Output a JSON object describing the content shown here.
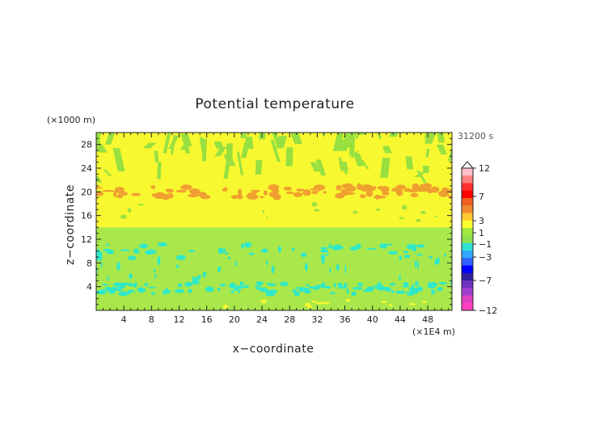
{
  "chart_data": {
    "type": "heatmap",
    "title": "Potential temperature",
    "xlabel": "x−coordinate",
    "ylabel": "z−coordinate",
    "x_unit": "(×1E4 m)",
    "y_unit": "(×1000 m)",
    "time_label": "31200 s",
    "xlim": [
      0,
      51.5
    ],
    "ylim": [
      0,
      30
    ],
    "x_ticks": [
      "4",
      "8",
      "12",
      "16",
      "20",
      "24",
      "28",
      "32",
      "36",
      "40",
      "44",
      "48"
    ],
    "y_ticks": [
      "4",
      "8",
      "12",
      "16",
      "20",
      "24",
      "28"
    ],
    "colorbar": {
      "labels": [
        "12",
        "7",
        "3",
        "1",
        "−1",
        "−3",
        "−7",
        "−12"
      ],
      "colors": [
        "#ffc0cb",
        "#ff8080",
        "#ff3030",
        "#ff0000",
        "#f06020",
        "#f08a30",
        "#ffc830",
        "#ffff30",
        "#a0e840",
        "#8ee04a",
        "#30e0d0",
        "#30a8ff",
        "#3060ff",
        "#0000ff",
        "#3020a0",
        "#7030c0",
        "#a040d0",
        "#e040c0",
        "#ff40c0"
      ]
    },
    "layers": [
      {
        "z": [
          0,
          2.5
        ],
        "value": "-1"
      },
      {
        "z": [
          2.5,
          4.5
        ],
        "value": "-3 to -1"
      },
      {
        "z": [
          4.5,
          9
        ],
        "value": "-1"
      },
      {
        "z": [
          9,
          11
        ],
        "value": "-3 to -1"
      },
      {
        "z": [
          11,
          14
        ],
        "value": "-1"
      },
      {
        "z": [
          14,
          19
        ],
        "value": "1"
      },
      {
        "z": [
          19,
          21
        ],
        "value": "3"
      },
      {
        "z": [
          21,
          30
        ],
        "value": "1"
      }
    ],
    "colors": {
      "background": "#a8e84a",
      "yellow": "#f8f830",
      "orange": "#f0a030",
      "cyan": "#30e8c8",
      "green": "#98e040"
    }
  }
}
